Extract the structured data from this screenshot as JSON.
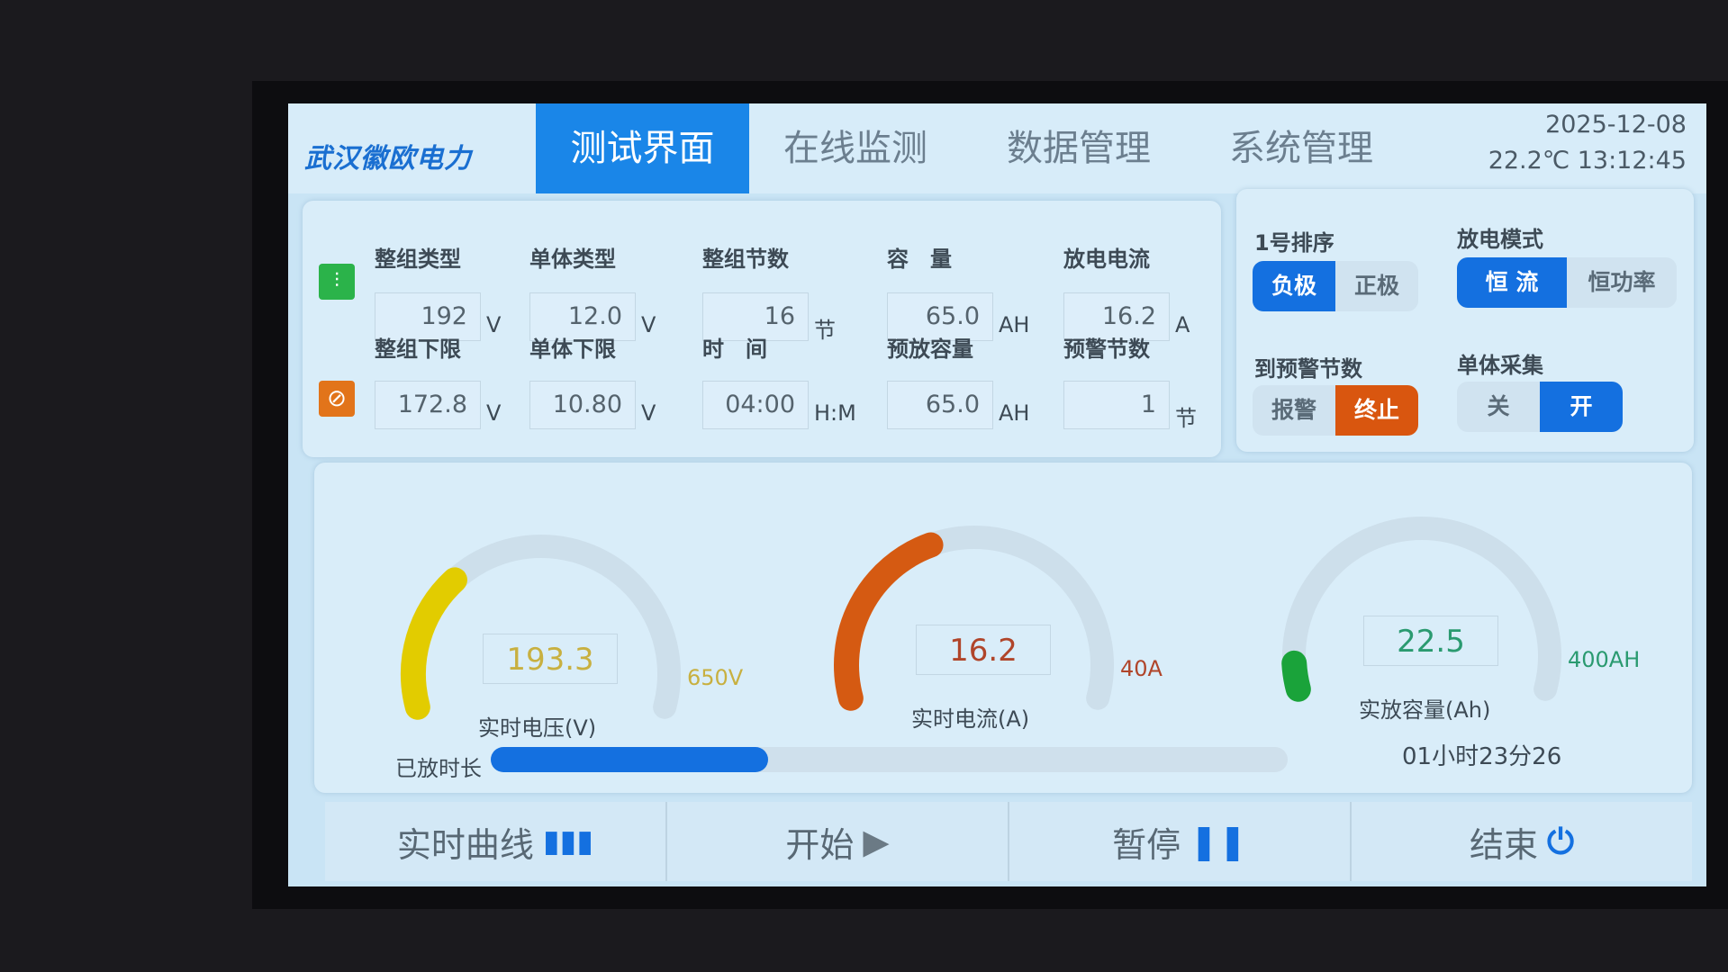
{
  "header": {
    "logo": "武汉徽欧电力",
    "tabs": [
      {
        "label": "测试界面",
        "active": true
      },
      {
        "label": "在线监测"
      },
      {
        "label": "数据管理"
      },
      {
        "label": "系统管理"
      }
    ],
    "date": "2025-12-08",
    "temp_time": "22.2℃ 13:12:45"
  },
  "params": {
    "row1": [
      {
        "label": "整组类型",
        "value": "192",
        "unit": "V"
      },
      {
        "label": "单体类型",
        "value": "12.0",
        "unit": "V"
      },
      {
        "label": "整组节数",
        "value": "16",
        "unit": "节"
      },
      {
        "label": "容　量",
        "value": "65.0",
        "unit": "AH"
      },
      {
        "label": "放电电流",
        "value": "16.2",
        "unit": "A"
      }
    ],
    "row2": [
      {
        "label": "整组下限",
        "value": "172.8",
        "unit": "V"
      },
      {
        "label": "单体下限",
        "value": "10.80",
        "unit": "V"
      },
      {
        "label": "时　间",
        "value": "04:00",
        "unit": "H:M"
      },
      {
        "label": "预放容量",
        "value": "65.0",
        "unit": "AH"
      },
      {
        "label": "预警节数",
        "value": "1",
        "unit": "节"
      }
    ]
  },
  "options": {
    "order": {
      "label": "1号排序",
      "options": [
        "负极",
        "正极"
      ],
      "selected": "负极"
    },
    "mode": {
      "label": "放电模式",
      "options": [
        "恒 流",
        "恒功率"
      ],
      "selected": "恒 流"
    },
    "warn": {
      "label": "到预警节数",
      "options": [
        "报警",
        "终止"
      ],
      "selected": "终止"
    },
    "cell": {
      "label": "单体采集",
      "options": [
        "关",
        "开"
      ],
      "selected": "开"
    }
  },
  "gauges": [
    {
      "label": "实时电压(V)",
      "value": "193.3",
      "max": 650,
      "max_label": "650V",
      "color": "#e2cc00",
      "text_color": "#c8b040"
    },
    {
      "label": "实时电流(A)",
      "value": "16.2",
      "max": 40,
      "max_label": "40A",
      "color": "#d55a12",
      "text_color": "#b0452a"
    },
    {
      "label": "实放容量(Ah)",
      "value": "22.5",
      "max": 400,
      "max_label": "400AH",
      "color": "#1aa33a",
      "text_color": "#2a9a70"
    }
  ],
  "progress": {
    "label": "已放时长",
    "fraction": 0.348,
    "elapsed": "01小时23分26",
    "color": "#1470e0"
  },
  "buttons": {
    "curve": "实时曲线",
    "start": "开始",
    "pause": "暂停",
    "stop": "结束"
  }
}
